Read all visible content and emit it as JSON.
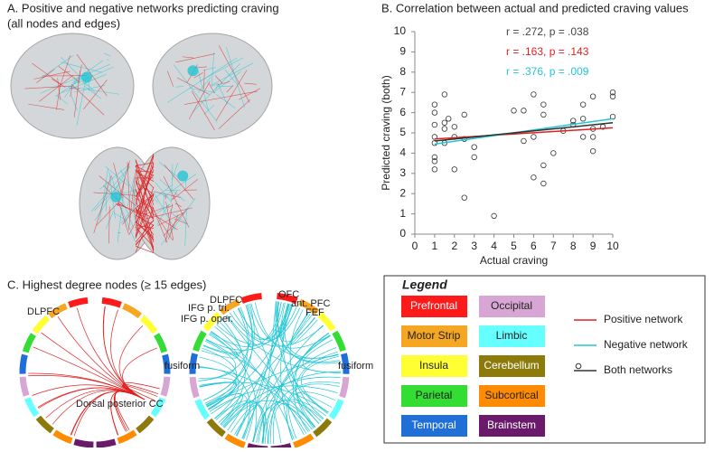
{
  "panel_a": {
    "title": "A. Positive and negative networks predicting craving",
    "subtitle": "(all nodes and edges)"
  },
  "panel_c": {
    "title": "C. Highest degree nodes (≥ 15 edges)",
    "labels": [
      "DLPFC",
      "fusiform",
      "Dorsal posterior CC",
      "IFG p. tri.",
      "IFG p. oper.",
      "DLPFC",
      "OFC",
      "ant. PFC",
      "FEF",
      "fusiform"
    ]
  },
  "legend": {
    "title": "Legend",
    "regions": [
      {
        "name": "Prefrontal",
        "color": "#ff1a1a"
      },
      {
        "name": "Motor Strip",
        "color": "#f5a623"
      },
      {
        "name": "Insula",
        "color": "#ffff33"
      },
      {
        "name": "Parietal",
        "color": "#33dd33"
      },
      {
        "name": "Temporal",
        "color": "#1f6fd6"
      },
      {
        "name": "Occipital",
        "color": "#d8a6d4"
      },
      {
        "name": "Limbic",
        "color": "#66ffff"
      },
      {
        "name": "Cerebellum",
        "color": "#8c7a0a"
      },
      {
        "name": "Subcortical",
        "color": "#ff8c00"
      },
      {
        "name": "Brainstem",
        "color": "#6b1a6b"
      }
    ]
  },
  "chart_data": {
    "type": "scatter",
    "title": "B. Correlation between actual and predicted craving values",
    "x_label": "Actual craving",
    "y_label": "Predicted craving (both)",
    "xlim": [
      0,
      10
    ],
    "ylim": [
      0,
      10
    ],
    "xticks": [
      0,
      1,
      2,
      3,
      4,
      5,
      6,
      7,
      8,
      9,
      10
    ],
    "yticks": [
      0,
      1,
      2,
      3,
      4,
      5,
      6,
      7,
      8,
      9,
      10
    ],
    "points": {
      "x": [
        1,
        1,
        1,
        1,
        1,
        1,
        1,
        1,
        1.5,
        1.5,
        1.5,
        1.5,
        1.7,
        2,
        2,
        2,
        2.5,
        2.5,
        2.5,
        3,
        3,
        4,
        5,
        5.5,
        5.5,
        6,
        6,
        6,
        6.5,
        6.5,
        6.5,
        6.5,
        7,
        7.5,
        8,
        8,
        8.5,
        8.5,
        8.5,
        9,
        9,
        9,
        9,
        9.5,
        10,
        10,
        10
      ],
      "y": [
        6.4,
        6.0,
        5.4,
        4.8,
        4.5,
        3.8,
        3.6,
        3.2,
        6.9,
        5.5,
        5.2,
        4.5,
        5.7,
        5.3,
        4.8,
        3.2,
        5.9,
        4.7,
        1.8,
        4.3,
        3.8,
        0.9,
        6.1,
        6.1,
        4.6,
        6.9,
        4.8,
        2.8,
        6.4,
        5.9,
        3.4,
        2.5,
        4.0,
        5.1,
        5.6,
        5.4,
        6.4,
        5.7,
        4.8,
        6.8,
        5.2,
        4.8,
        4.1,
        5.3,
        7.0,
        6.8,
        5.8
      ]
    },
    "series": [
      {
        "name": "Positive network",
        "color": "#e02020",
        "x": [
          1,
          10
        ],
        "values": [
          4.7,
          5.25
        ]
      },
      {
        "name": "Negative network",
        "color": "#22c6d6",
        "x": [
          1,
          10
        ],
        "values": [
          4.45,
          5.7
        ]
      },
      {
        "name": "Both networks",
        "color": "#333333",
        "x": [
          1,
          10
        ],
        "values": [
          4.6,
          5.5
        ]
      }
    ],
    "annotations": [
      {
        "text": "r = .272, p = .038",
        "color": "#444444"
      },
      {
        "text": "r = .163, p = .143",
        "color": "#e02020"
      },
      {
        "text": "r = .376, p = .009",
        "color": "#22c6d6"
      }
    ]
  }
}
